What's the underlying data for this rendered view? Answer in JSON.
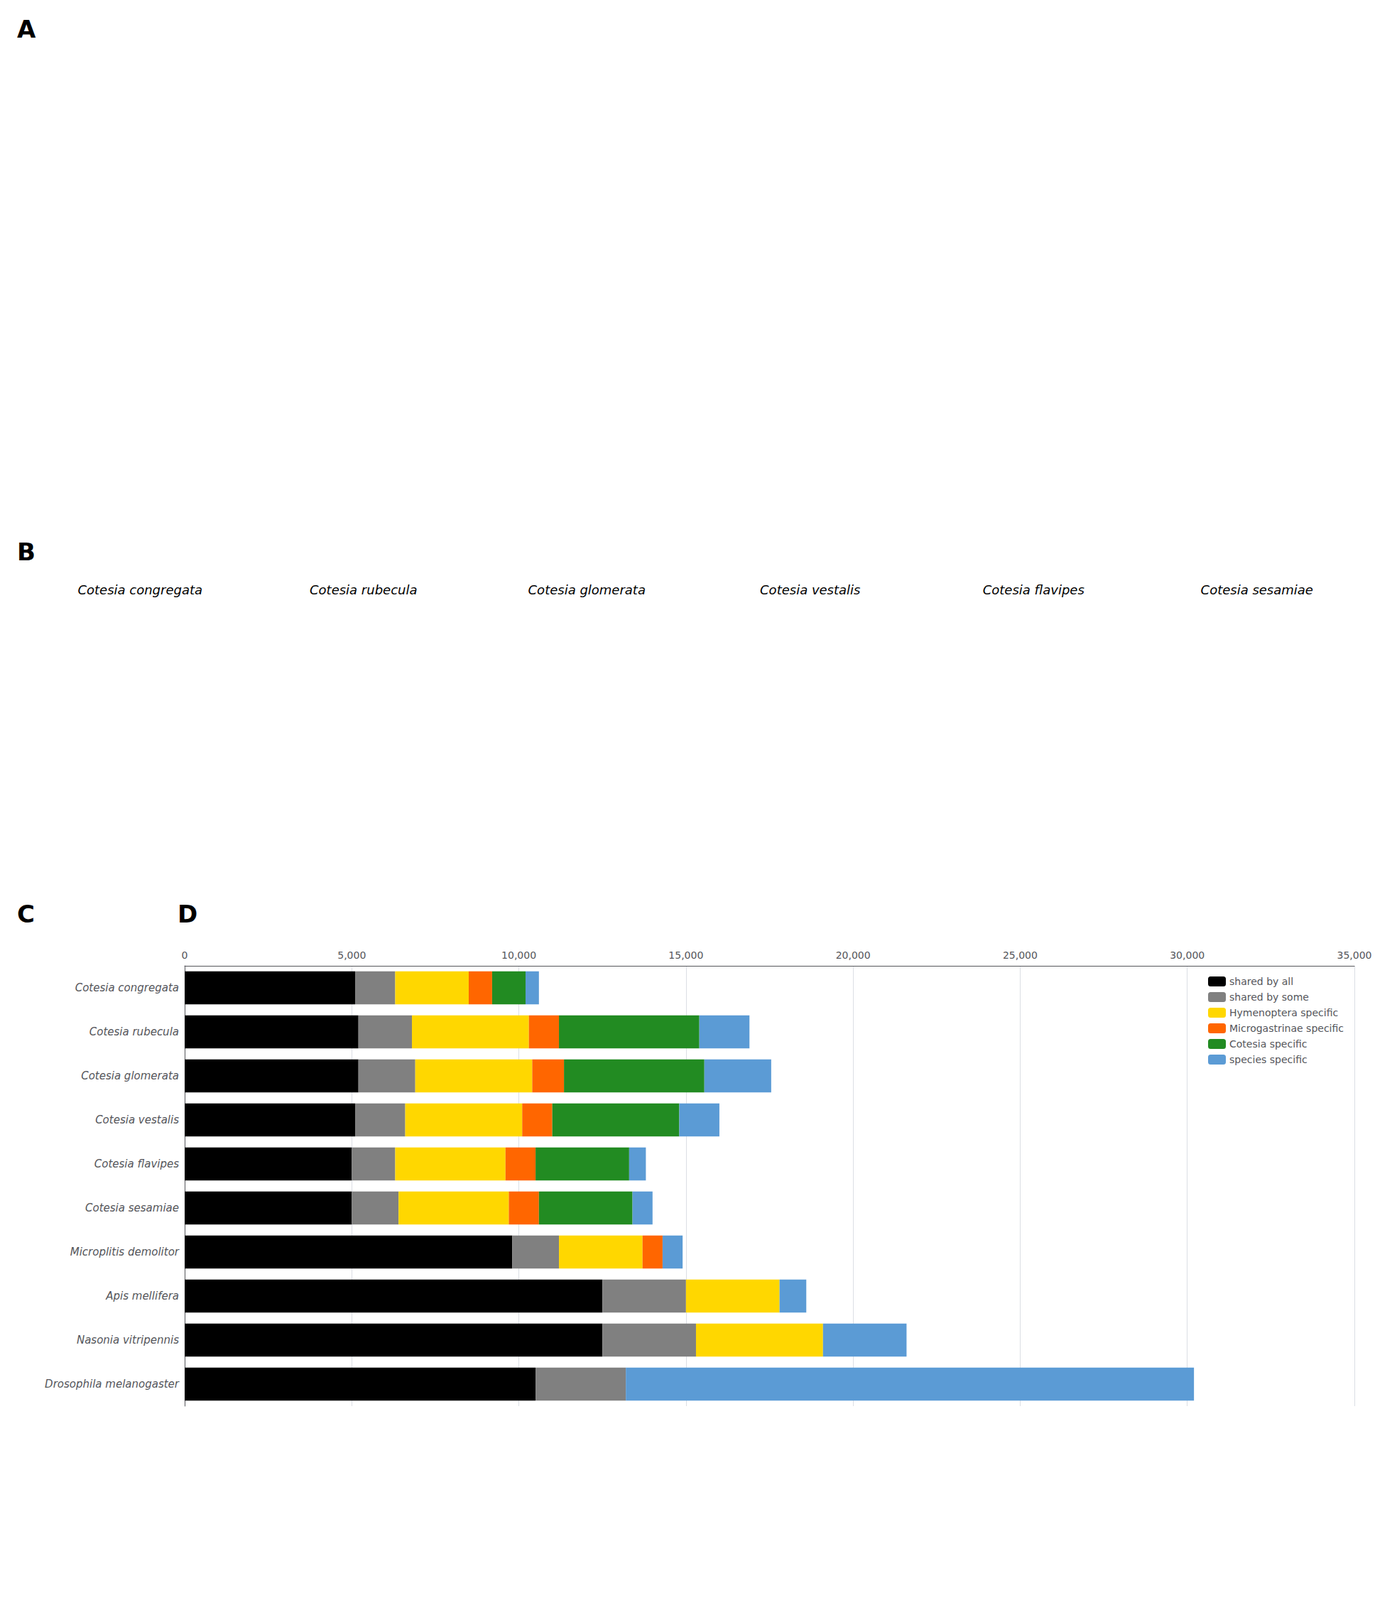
{
  "chart_data": {
    "type": "bar",
    "orientation": "horizontal",
    "stacked": true,
    "categories": [
      "Cotesia congregata",
      "Cotesia rubecula",
      "Cotesia glomerata",
      "Cotesia vestalis",
      "Cotesia flavipes",
      "Cotesia sesamiae",
      "Microplitis demolitor",
      "Apis mellifera",
      "Nasonia vitripennis",
      "Drosophila melanogaster"
    ],
    "series": [
      {
        "name": "shared by all",
        "color": "#000000",
        "values": [
          5100,
          5200,
          5200,
          5100,
          5000,
          5000,
          9800,
          12500,
          12500,
          10500
        ]
      },
      {
        "name": "shared by some",
        "color": "#808080",
        "values": [
          1200,
          1600,
          1700,
          1500,
          1300,
          1400,
          1400,
          2500,
          2800,
          2700
        ]
      },
      {
        "name": "Hymenoptera specific",
        "color": "#FFD700",
        "values": [
          2200,
          3500,
          3500,
          3500,
          3300,
          3300,
          2500,
          2800,
          3800,
          0
        ]
      },
      {
        "name": "Microgastrinae specific",
        "color": "#FF6600",
        "values": [
          700,
          900,
          950,
          900,
          900,
          900,
          600,
          0,
          0,
          0
        ]
      },
      {
        "name": "Cotesia specific",
        "color": "#228B22",
        "values": [
          1000,
          4200,
          4200,
          3800,
          2800,
          2800,
          0,
          0,
          0,
          0
        ]
      },
      {
        "name": "species specific",
        "color": "#5B9BD5",
        "values": [
          400,
          1500,
          2000,
          1200,
          500,
          600,
          600,
          800,
          2500,
          17000
        ]
      }
    ],
    "xlim": [
      0,
      35000
    ],
    "xticks": [
      0,
      {
        "value": 5000,
        "label": "5,000"
      },
      {
        "value": 10000,
        "label": "10,000"
      },
      {
        "value": 15000,
        "label": "15,000"
      },
      {
        "value": 20000,
        "label": "20,000"
      },
      {
        "value": 25000,
        "label": "25,000"
      },
      {
        "value": 30000,
        "label": "30,000"
      },
      {
        "value": 35000,
        "label": "35,000"
      }
    ],
    "grid": true,
    "legend": "upper right",
    "annotations": [
      "A",
      "B",
      "C",
      "D",
      "Cotesia congregata",
      "Cotesia rubecula",
      "Cotesia glomerata",
      "Cotesia vestalis",
      "Cotesia flavipes",
      "Cotesia sesamiae"
    ]
  }
}
